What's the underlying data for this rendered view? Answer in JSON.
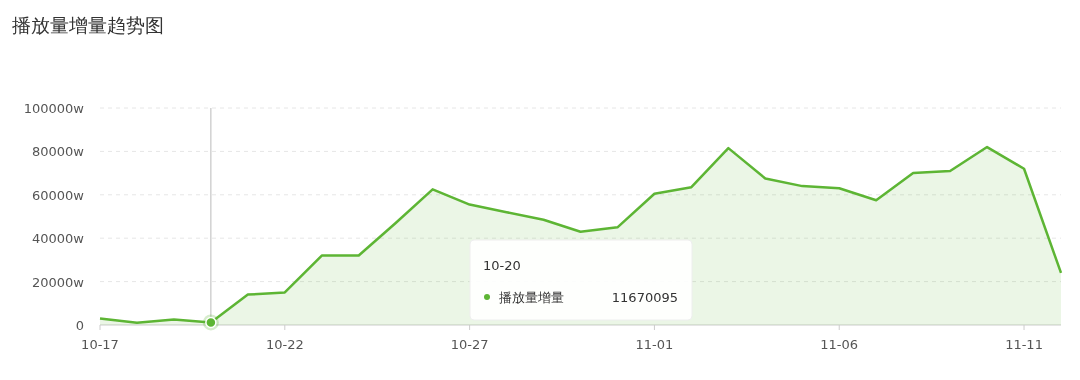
{
  "chart_data": {
    "type": "area",
    "title": "播放量增量趋势图",
    "x": [
      "--10-17",
      "--10-18",
      "--10-19",
      "--10-20",
      "--10-21",
      "--10-22",
      "--10-23",
      "--10-24",
      "--10-25",
      "--10-26",
      "--10-27",
      "--10-28",
      "--10-29",
      "--10-30",
      "--10-31",
      "--11-01",
      "--11-02",
      "--11-03",
      "--11-04",
      "--11-05",
      "--11-06",
      "--11-07",
      "--11-08",
      "--11-09",
      "--11-10",
      "--11-11",
      "--11-12"
    ],
    "series": [
      {
        "name": "播放量增量",
        "color": "#5db534",
        "values": [
          3000,
          1000,
          2500,
          1167,
          14000,
          15000,
          32000,
          32000,
          47000,
          62500,
          55500,
          52000,
          48500,
          43000,
          45000,
          60500,
          63500,
          81500,
          67500,
          64000,
          63000,
          57500,
          70000,
          71000,
          82000,
          72000,
          24000
        ]
      }
    ],
    "xlim": [
      "--10-17",
      "--11-12"
    ],
    "xticks": [
      {
        "value": "--10-17",
        "label": "10-17"
      },
      {
        "value": "--10-22",
        "label": "10-22"
      },
      {
        "value": "--10-27",
        "label": "10-27"
      },
      {
        "value": "--11-01",
        "label": "11-01"
      },
      {
        "value": "--11-06",
        "label": "11-06"
      },
      {
        "value": "--11-11",
        "label": "11-11"
      }
    ],
    "ylim": [
      0,
      100000
    ],
    "yticks": [
      0,
      {
        "value": 20000,
        "label": "20000w"
      },
      {
        "value": 40000,
        "label": "40000w"
      },
      {
        "value": 60000,
        "label": "60000w"
      },
      {
        "value": 80000,
        "label": "80000w"
      },
      {
        "value": 100000,
        "label": "100000w"
      }
    ],
    "grid": "y",
    "ref_lines": [
      {
        "axis": "x",
        "value": "--10-20",
        "color": "#bbbbbb"
      }
    ],
    "annotations": [
      "10-20",
      "11670095"
    ]
  }
}
